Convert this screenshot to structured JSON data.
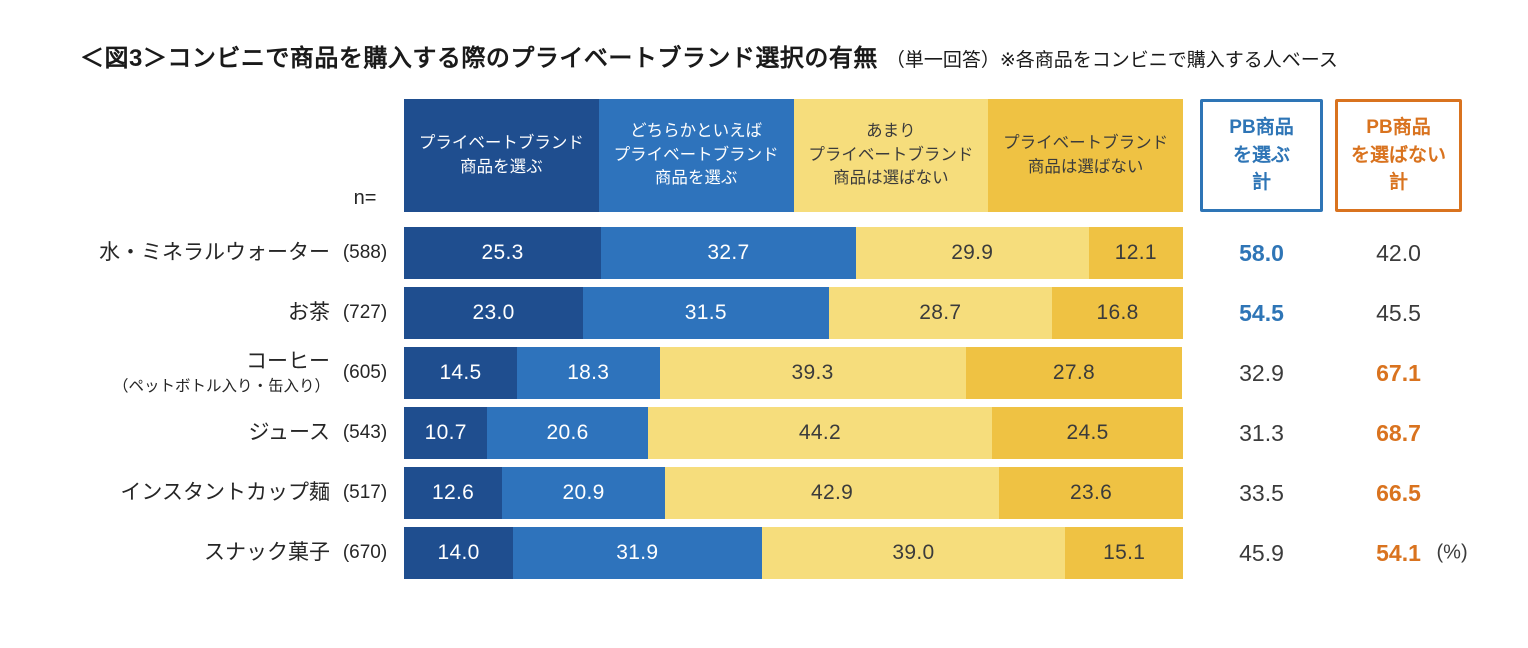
{
  "header": {
    "title": "＜図3＞コンビニで商品を購入する際のプライベートブランド選択の有無",
    "note": "（単一回答）※各商品をコンビニで購入する人ベース"
  },
  "chart_data": {
    "type": "bar",
    "stacked": true,
    "orientation": "horizontal",
    "unit": "%",
    "xlim": [
      0,
      100
    ],
    "n_header": "n=",
    "legend_position": "top",
    "legend": [
      {
        "name": "プライベートブランド商品を選ぶ",
        "label_lines": [
          "プライベートブランド",
          "商品を選ぶ"
        ],
        "color": "#1F4E8F",
        "text_color": "#FFFFFF"
      },
      {
        "name": "どちらかといえばプライベートブランド商品を選ぶ",
        "label_lines": [
          "どちらかといえば",
          "プライベートブランド",
          "商品を選ぶ"
        ],
        "color": "#2E73BC",
        "text_color": "#FFFFFF"
      },
      {
        "name": "あまりプライベートブランド商品は選ばない",
        "label_lines": [
          "あまり",
          "プライベートブランド",
          "商品は選ばない"
        ],
        "color": "#F6DD7C",
        "text_color": "#3B3B3B"
      },
      {
        "name": "プライベートブランド商品は選ばない",
        "label_lines": [
          "プライベートブランド",
          "商品は選ばない"
        ],
        "color": "#EFC243",
        "text_color": "#3B3B3B"
      }
    ],
    "summary_columns": [
      {
        "name": "PB商品を選ぶ計",
        "label_lines": [
          "PB商品",
          "を選ぶ",
          "計"
        ],
        "accent_color": "#2E75B6"
      },
      {
        "name": "PB商品を選ばない計",
        "label_lines": [
          "PB商品",
          "を選ばない",
          "計"
        ],
        "accent_color": "#D9731F"
      }
    ],
    "rows": [
      {
        "category": "水・ミネラルウォーター",
        "category_note": "",
        "n": "(588)",
        "values": [
          25.3,
          32.7,
          29.9,
          12.1
        ],
        "select_total": 58.0,
        "notselect_total": 42.0,
        "highlight": "select",
        "unit_suffix": ""
      },
      {
        "category": "お茶",
        "category_note": "",
        "n": "(727)",
        "values": [
          23.0,
          31.5,
          28.7,
          16.8
        ],
        "select_total": 54.5,
        "notselect_total": 45.5,
        "highlight": "select",
        "unit_suffix": ""
      },
      {
        "category": "コーヒー",
        "category_note": "（ペットボトル入り・缶入り）",
        "n": "(605)",
        "values": [
          14.5,
          18.3,
          39.3,
          27.8
        ],
        "select_total": 32.9,
        "notselect_total": 67.1,
        "highlight": "notselect",
        "unit_suffix": ""
      },
      {
        "category": "ジュース",
        "category_note": "",
        "n": "(543)",
        "values": [
          10.7,
          20.6,
          44.2,
          24.5
        ],
        "select_total": 31.3,
        "notselect_total": 68.7,
        "highlight": "notselect",
        "unit_suffix": ""
      },
      {
        "category": "インスタントカップ麺",
        "category_note": "",
        "n": "(517)",
        "values": [
          12.6,
          20.9,
          42.9,
          23.6
        ],
        "select_total": 33.5,
        "notselect_total": 66.5,
        "highlight": "notselect",
        "unit_suffix": ""
      },
      {
        "category": "スナック菓子",
        "category_note": "",
        "n": "(670)",
        "values": [
          14.0,
          31.9,
          39.0,
          15.1
        ],
        "select_total": 45.9,
        "notselect_total": 54.1,
        "highlight": "notselect",
        "unit_suffix": "(%)"
      }
    ]
  }
}
